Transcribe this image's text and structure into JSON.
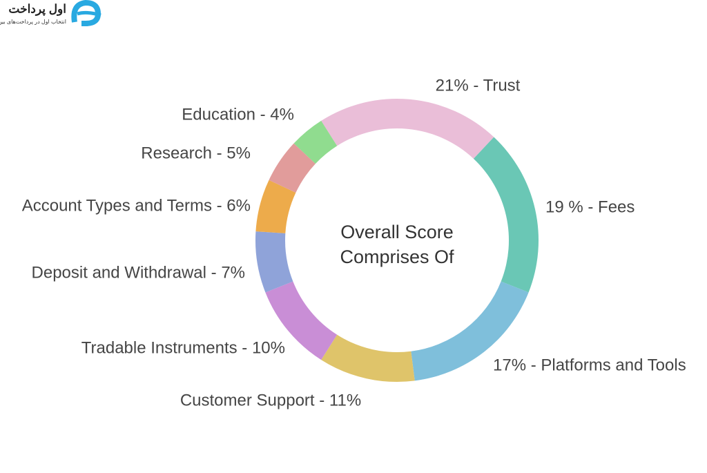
{
  "logo": {
    "name": "اول پرداخت",
    "tagline": "انتخاب اول در پرداخت‌های بین المللی"
  },
  "chart_data": {
    "type": "pie",
    "donut": true,
    "title": "Overall Score Comprises Of",
    "values": [
      21,
      19,
      17,
      11,
      10,
      7,
      6,
      5,
      4
    ],
    "value_labels": [
      "21% - Trust",
      "19 % - Fees",
      "17% - Platforms and Tools",
      "Customer Support - 11%",
      "Tradable Instruments - 10%",
      "Deposit and Withdrawal - 7%",
      "Account Types and Terms - 6%",
      "Research - 5%",
      "Education - 4%"
    ],
    "colors": [
      "#eabed8",
      "#6ac7b5",
      "#7fbfdb",
      "#dfc46a",
      "#c98ed6",
      "#8fa3d9",
      "#edab4b",
      "#e19c9b",
      "#90dc8f"
    ]
  }
}
